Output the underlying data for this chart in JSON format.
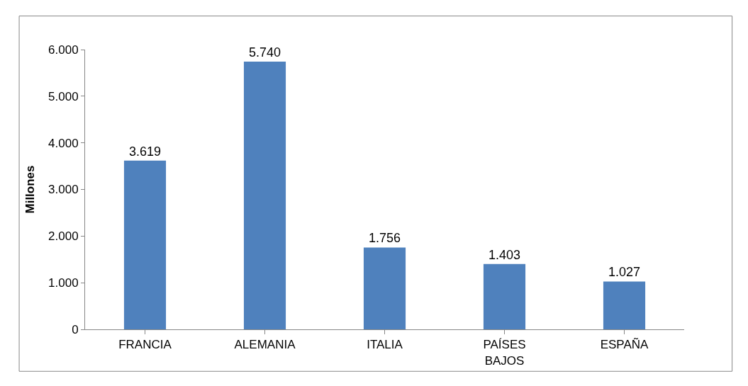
{
  "chart_data": {
    "type": "bar",
    "ylabel": "Millones",
    "categories": [
      "FRANCIA",
      "ALEMANIA",
      "ITALIA",
      "PAÍSES BAJOS",
      "ESPAÑA"
    ],
    "values": [
      3619,
      5740,
      1756,
      1403,
      1027
    ],
    "value_labels": [
      "3.619",
      "5.740",
      "1.756",
      "1.403",
      "1.027"
    ],
    "color": "#4f81bd",
    "ylim": [
      0,
      6000
    ],
    "yticks": [
      {
        "value": 0,
        "label": "0"
      },
      {
        "value": 1000,
        "label": "1.000"
      },
      {
        "value": 2000,
        "label": "2.000"
      },
      {
        "value": 3000,
        "label": "3.000"
      },
      {
        "value": 4000,
        "label": "4.000"
      },
      {
        "value": 5000,
        "label": "5.000"
      },
      {
        "value": 6000,
        "label": "6.000"
      }
    ],
    "legend": false
  }
}
